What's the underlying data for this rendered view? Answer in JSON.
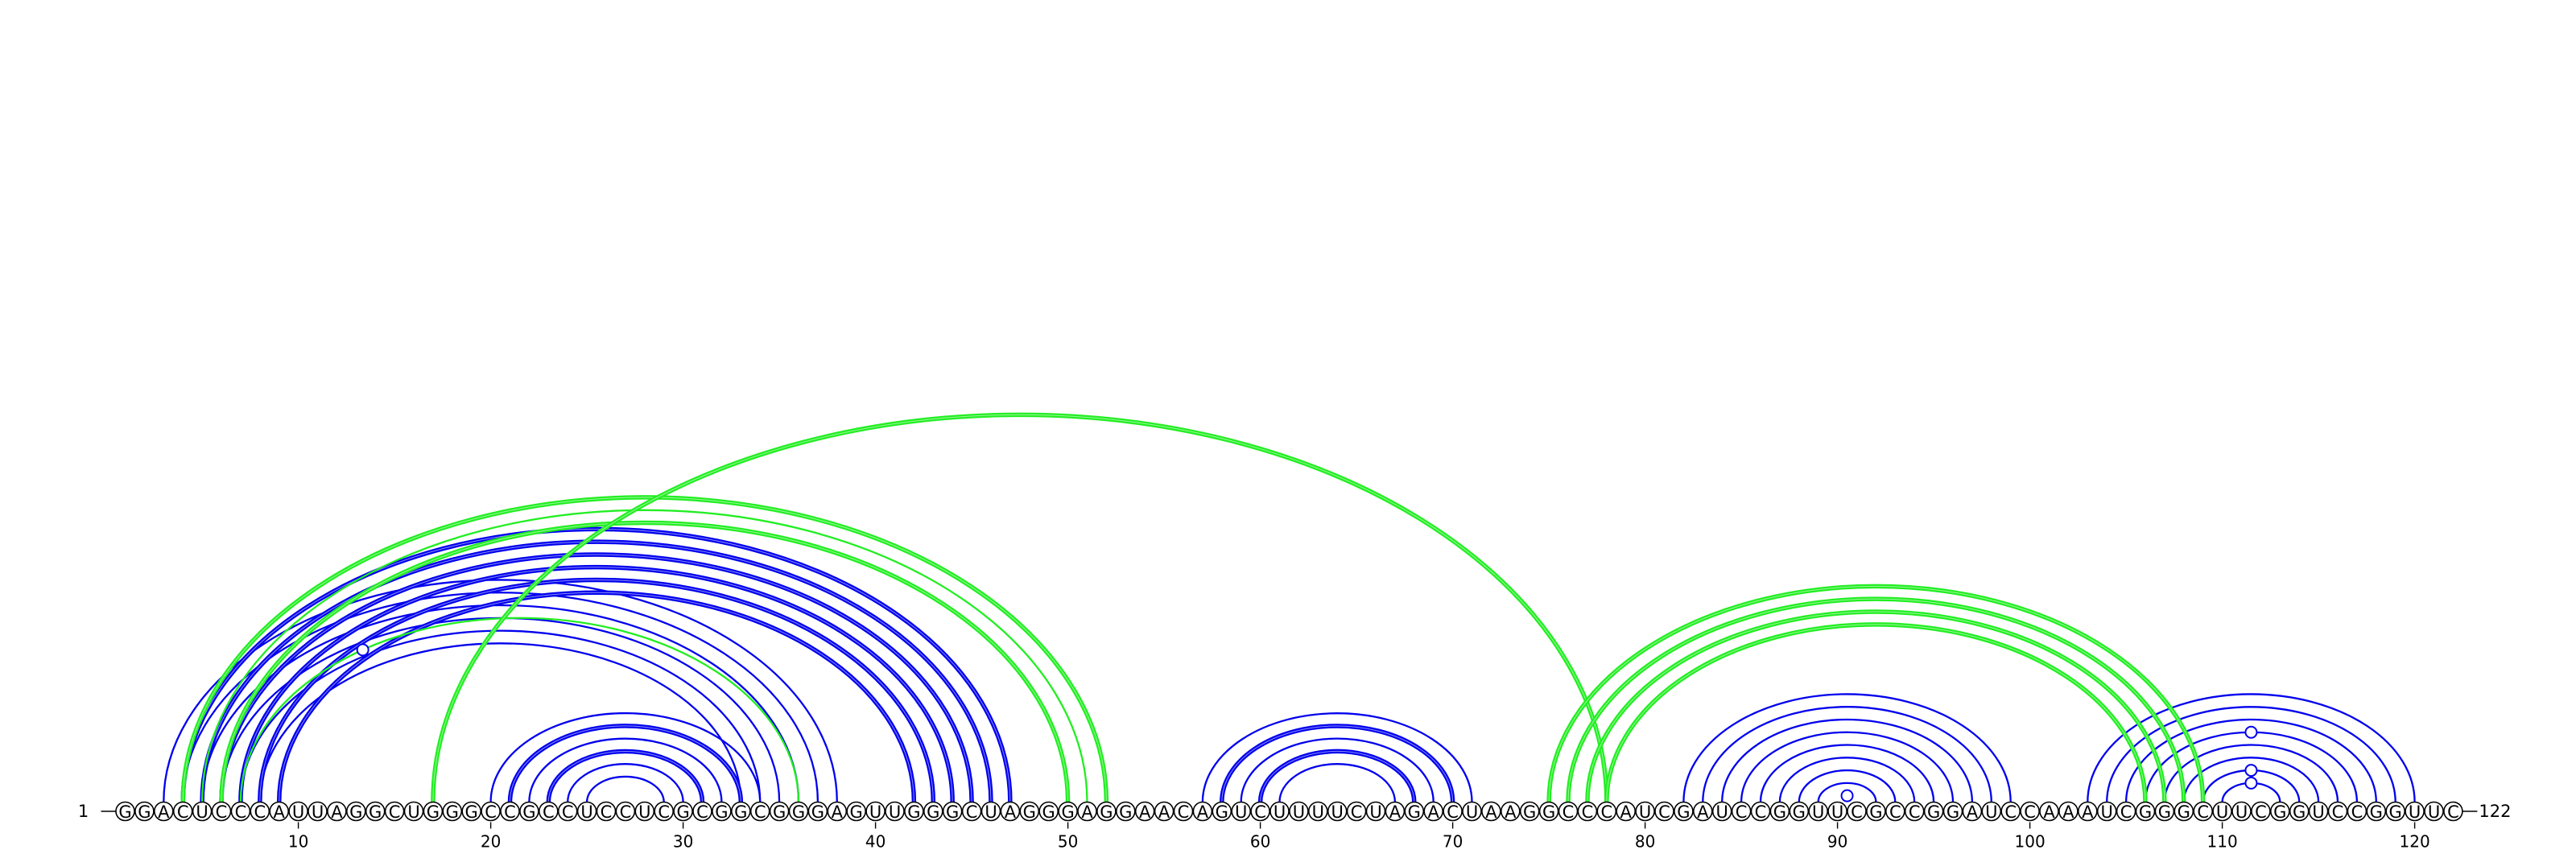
{
  "sequence": "GGACUCCCAUUAGGCUGGGCCGCCUCCUCGCGGCGGGAGUUGGGCUAGGGAGGAACAGUCUUUUCUAGACUAAGGCCCAUCGAUCCGGUUCGCCGGAUCCAAAUCGGGCUUCGGUCCGGUUC",
  "start_label": "1",
  "end_label": "122",
  "tick_interval": 10,
  "colors": {
    "blue": "#0000ee",
    "green": "#22ee22",
    "pseudo_marker": "#0000ee"
  },
  "arcs": [
    {
      "i": 3,
      "j": 38,
      "color": "blue",
      "weight": "thin"
    },
    {
      "i": 4,
      "j": 37,
      "color": "blue",
      "weight": "thin"
    },
    {
      "i": 5,
      "j": 36,
      "color": "blue",
      "weight": "thin"
    },
    {
      "i": 6,
      "j": 35,
      "color": "blue",
      "weight": "thin"
    },
    {
      "i": 7,
      "j": 34,
      "color": "blue",
      "weight": "thin"
    },
    {
      "i": 8,
      "j": 33,
      "color": "blue",
      "weight": "thin"
    },
    {
      "i": 4,
      "j": 47,
      "color": "blue",
      "weight": "thick"
    },
    {
      "i": 5,
      "j": 46,
      "color": "blue",
      "weight": "thick"
    },
    {
      "i": 6,
      "j": 45,
      "color": "blue",
      "weight": "thick"
    },
    {
      "i": 7,
      "j": 44,
      "color": "blue",
      "weight": "thick"
    },
    {
      "i": 8,
      "j": 43,
      "color": "blue",
      "weight": "thick"
    },
    {
      "i": 9,
      "j": 42,
      "color": "blue",
      "weight": "thick"
    },
    {
      "i": 20,
      "j": 34,
      "color": "blue",
      "weight": "thin"
    },
    {
      "i": 21,
      "j": 33,
      "color": "blue",
      "weight": "thick"
    },
    {
      "i": 22,
      "j": 32,
      "color": "blue",
      "weight": "thin"
    },
    {
      "i": 23,
      "j": 31,
      "color": "blue",
      "weight": "thick"
    },
    {
      "i": 24,
      "j": 30,
      "color": "blue",
      "weight": "thin"
    },
    {
      "i": 25,
      "j": 29,
      "color": "blue",
      "weight": "thin"
    },
    {
      "i": 57,
      "j": 71,
      "color": "blue",
      "weight": "thin"
    },
    {
      "i": 58,
      "j": 70,
      "color": "blue",
      "weight": "thick"
    },
    {
      "i": 59,
      "j": 69,
      "color": "blue",
      "weight": "thin"
    },
    {
      "i": 60,
      "j": 68,
      "color": "blue",
      "weight": "thick"
    },
    {
      "i": 61,
      "j": 67,
      "color": "blue",
      "weight": "thin"
    },
    {
      "i": 82,
      "j": 99,
      "color": "blue",
      "weight": "thin"
    },
    {
      "i": 83,
      "j": 98,
      "color": "blue",
      "weight": "thin"
    },
    {
      "i": 84,
      "j": 97,
      "color": "blue",
      "weight": "thin"
    },
    {
      "i": 85,
      "j": 96,
      "color": "blue",
      "weight": "thin"
    },
    {
      "i": 86,
      "j": 95,
      "color": "blue",
      "weight": "thin"
    },
    {
      "i": 87,
      "j": 94,
      "color": "blue",
      "weight": "thin"
    },
    {
      "i": 88,
      "j": 93,
      "color": "blue",
      "weight": "thin"
    },
    {
      "i": 89,
      "j": 92,
      "color": "blue",
      "weight": "thin"
    },
    {
      "i": 103,
      "j": 120,
      "color": "blue",
      "weight": "thin"
    },
    {
      "i": 104,
      "j": 119,
      "color": "blue",
      "weight": "thin"
    },
    {
      "i": 105,
      "j": 118,
      "color": "blue",
      "weight": "thin"
    },
    {
      "i": 106,
      "j": 117,
      "color": "blue",
      "weight": "thin"
    },
    {
      "i": 107,
      "j": 116,
      "color": "blue",
      "weight": "thin"
    },
    {
      "i": 108,
      "j": 115,
      "color": "blue",
      "weight": "thin"
    },
    {
      "i": 109,
      "j": 114,
      "color": "blue",
      "weight": "thin"
    },
    {
      "i": 110,
      "j": 113,
      "color": "blue",
      "weight": "thin"
    },
    {
      "i": 4,
      "j": 52,
      "color": "green",
      "weight": "thick"
    },
    {
      "i": 5,
      "j": 51,
      "color": "green",
      "weight": "thin"
    },
    {
      "i": 6,
      "j": 50,
      "color": "green",
      "weight": "thick"
    },
    {
      "i": 7,
      "j": 36,
      "color": "green",
      "weight": "thin"
    },
    {
      "i": 17,
      "j": 78,
      "color": "green",
      "weight": "thick"
    },
    {
      "i": 75,
      "j": 109,
      "color": "green",
      "weight": "thick"
    },
    {
      "i": 76,
      "j": 108,
      "color": "green",
      "weight": "thick"
    },
    {
      "i": 77,
      "j": 107,
      "color": "green",
      "weight": "thick"
    },
    {
      "i": 78,
      "j": 106,
      "color": "green",
      "weight": "thick"
    }
  ],
  "pseudo_markers": [
    {
      "i": 7,
      "j": 36
    },
    {
      "i": 90,
      "j": 91
    },
    {
      "i": 110,
      "j": 113
    },
    {
      "i": 109,
      "j": 114
    },
    {
      "i": 106,
      "j": 117
    }
  ]
}
